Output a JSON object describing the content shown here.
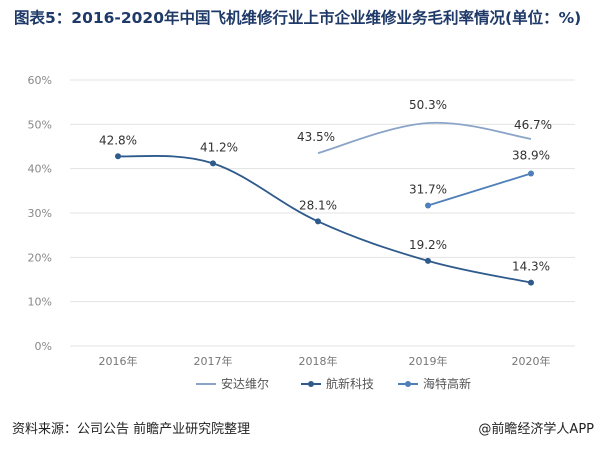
{
  "title": "图表5：2016-2020年中国飞机维修行业上市企业维修业务毛利率情况(单位：%)",
  "source": "资料来源：公司公告 前瞻产业研究院整理",
  "brand": "@前瞻经济学人APP",
  "colors": {
    "title": "#1f3a68",
    "series": [
      "#8aa4c8",
      "#2e5a8c",
      "#4f7fb8"
    ]
  },
  "chart_data": {
    "type": "line",
    "categories": [
      "2016年",
      "2017年",
      "2018年",
      "2019年",
      "2020年"
    ],
    "ylim": [
      0,
      60
    ],
    "yticks": [
      "0%",
      "10%",
      "20%",
      "30%",
      "40%",
      "50%",
      "60%"
    ],
    "grid": true,
    "legend_position": "bottom",
    "series": [
      {
        "name": "安达维尔",
        "values": [
          null,
          null,
          43.5,
          50.3,
          46.7
        ],
        "labels": [
          null,
          null,
          "43.5%",
          "50.3%",
          "46.7%"
        ]
      },
      {
        "name": "航新科技",
        "values": [
          42.8,
          41.2,
          28.1,
          19.2,
          14.3
        ],
        "labels": [
          "42.8%",
          "41.2%",
          "28.1%",
          "19.2%",
          "14.3%"
        ]
      },
      {
        "name": "海特高新",
        "values": [
          null,
          null,
          null,
          31.7,
          38.9
        ],
        "labels": [
          null,
          null,
          null,
          "31.7%",
          "38.9%"
        ]
      }
    ]
  }
}
